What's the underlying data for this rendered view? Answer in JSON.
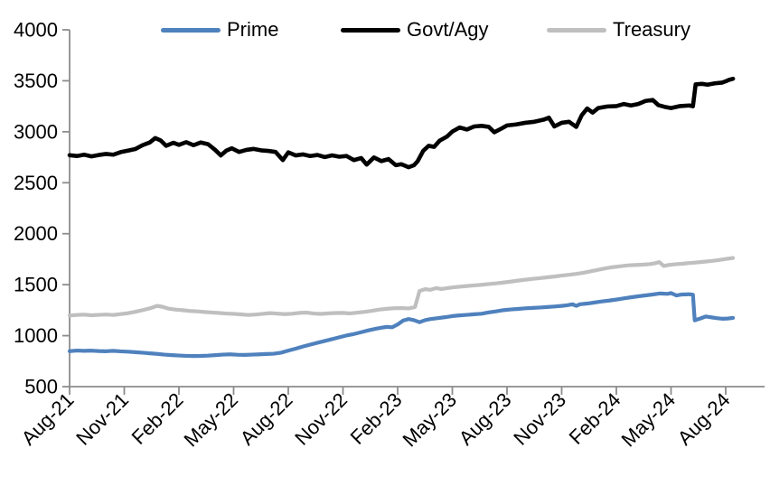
{
  "chart_data": {
    "type": "line",
    "title": "",
    "xlabel": "",
    "ylabel": "",
    "grid": false,
    "legend_position": "top",
    "x_unit": "months since Aug-21 (0 = Aug-21)",
    "x_tick_labels": [
      "Aug-21",
      "Nov-21",
      "Feb-22",
      "May-22",
      "Aug-22",
      "Nov-22",
      "Feb-23",
      "May-23",
      "Aug-23",
      "Nov-23",
      "Feb-24",
      "May-24",
      "Aug-24"
    ],
    "x_tick_positions": [
      0,
      3,
      6,
      9,
      12,
      15,
      18,
      21,
      24,
      27,
      30,
      33,
      36
    ],
    "xlim": [
      0,
      36.4
    ],
    "ylim": [
      500,
      4000
    ],
    "y_ticks": [
      500,
      1000,
      1500,
      2000,
      2500,
      3000,
      3500,
      4000
    ],
    "axis_color": "#8C8C8C",
    "series": [
      {
        "name": "Prime",
        "color": "#4F81BD",
        "points": [
          [
            0,
            848
          ],
          [
            0.4,
            854
          ],
          [
            0.8,
            851
          ],
          [
            1.2,
            853
          ],
          [
            1.6,
            849
          ],
          [
            2,
            847
          ],
          [
            2.4,
            851
          ],
          [
            2.8,
            846
          ],
          [
            3.2,
            843
          ],
          [
            3.6,
            838
          ],
          [
            4,
            833
          ],
          [
            4.4,
            827
          ],
          [
            4.8,
            821
          ],
          [
            5.2,
            814
          ],
          [
            5.6,
            809
          ],
          [
            6,
            805
          ],
          [
            6.4,
            802
          ],
          [
            6.8,
            800
          ],
          [
            7.2,
            801
          ],
          [
            7.6,
            804
          ],
          [
            8,
            809
          ],
          [
            8.4,
            814
          ],
          [
            8.8,
            817
          ],
          [
            9.2,
            813
          ],
          [
            9.6,
            811
          ],
          [
            10,
            814
          ],
          [
            10.4,
            817
          ],
          [
            10.8,
            820
          ],
          [
            11.2,
            823
          ],
          [
            11.6,
            833
          ],
          [
            12,
            853
          ],
          [
            12.4,
            872
          ],
          [
            12.8,
            893
          ],
          [
            13.2,
            912
          ],
          [
            13.6,
            930
          ],
          [
            14,
            948
          ],
          [
            14.4,
            966
          ],
          [
            14.8,
            984
          ],
          [
            15.2,
            1002
          ],
          [
            15.6,
            1016
          ],
          [
            16,
            1034
          ],
          [
            16.4,
            1052
          ],
          [
            16.8,
            1068
          ],
          [
            17.1,
            1078
          ],
          [
            17.4,
            1086
          ],
          [
            17.7,
            1082
          ],
          [
            18,
            1110
          ],
          [
            18.3,
            1148
          ],
          [
            18.6,
            1163
          ],
          [
            18.9,
            1152
          ],
          [
            19.2,
            1132
          ],
          [
            19.5,
            1152
          ],
          [
            19.8,
            1163
          ],
          [
            20.2,
            1172
          ],
          [
            20.6,
            1181
          ],
          [
            21,
            1192
          ],
          [
            21.4,
            1199
          ],
          [
            21.8,
            1204
          ],
          [
            22.2,
            1210
          ],
          [
            22.6,
            1215
          ],
          [
            23,
            1228
          ],
          [
            23.4,
            1238
          ],
          [
            23.8,
            1250
          ],
          [
            24.2,
            1257
          ],
          [
            24.6,
            1262
          ],
          [
            25,
            1268
          ],
          [
            25.4,
            1272
          ],
          [
            25.8,
            1276
          ],
          [
            26.2,
            1281
          ],
          [
            26.6,
            1286
          ],
          [
            27,
            1292
          ],
          [
            27.3,
            1298
          ],
          [
            27.6,
            1308
          ],
          [
            27.8,
            1292
          ],
          [
            28,
            1308
          ],
          [
            28.4,
            1315
          ],
          [
            28.8,
            1325
          ],
          [
            29.2,
            1336
          ],
          [
            29.6,
            1344
          ],
          [
            30,
            1354
          ],
          [
            30.4,
            1366
          ],
          [
            30.8,
            1376
          ],
          [
            31.2,
            1386
          ],
          [
            31.6,
            1395
          ],
          [
            32,
            1404
          ],
          [
            32.4,
            1414
          ],
          [
            32.8,
            1410
          ],
          [
            33,
            1418
          ],
          [
            33.3,
            1394
          ],
          [
            33.6,
            1404
          ],
          [
            34,
            1406
          ],
          [
            34.2,
            1402
          ],
          [
            34.3,
            1150
          ],
          [
            34.6,
            1168
          ],
          [
            34.9,
            1188
          ],
          [
            35.2,
            1180
          ],
          [
            35.5,
            1172
          ],
          [
            35.8,
            1166
          ],
          [
            36.1,
            1168
          ],
          [
            36.4,
            1174
          ]
        ]
      },
      {
        "name": "Govt/Agy",
        "color": "#000000",
        "points": [
          [
            0,
            2770
          ],
          [
            0.4,
            2762
          ],
          [
            0.8,
            2775
          ],
          [
            1.2,
            2758
          ],
          [
            1.6,
            2772
          ],
          [
            2,
            2782
          ],
          [
            2.4,
            2775
          ],
          [
            2.8,
            2800
          ],
          [
            3.2,
            2815
          ],
          [
            3.6,
            2830
          ],
          [
            4,
            2868
          ],
          [
            4.4,
            2895
          ],
          [
            4.7,
            2938
          ],
          [
            5,
            2915
          ],
          [
            5.3,
            2862
          ],
          [
            5.7,
            2892
          ],
          [
            6,
            2872
          ],
          [
            6.4,
            2898
          ],
          [
            6.8,
            2868
          ],
          [
            7.2,
            2895
          ],
          [
            7.6,
            2878
          ],
          [
            8,
            2820
          ],
          [
            8.3,
            2768
          ],
          [
            8.6,
            2815
          ],
          [
            8.9,
            2838
          ],
          [
            9.3,
            2802
          ],
          [
            9.7,
            2822
          ],
          [
            10.1,
            2832
          ],
          [
            10.5,
            2818
          ],
          [
            10.9,
            2812
          ],
          [
            11.3,
            2802
          ],
          [
            11.7,
            2722
          ],
          [
            12,
            2798
          ],
          [
            12.4,
            2768
          ],
          [
            12.8,
            2778
          ],
          [
            13.2,
            2762
          ],
          [
            13.6,
            2772
          ],
          [
            14,
            2752
          ],
          [
            14.4,
            2768
          ],
          [
            14.8,
            2755
          ],
          [
            15.2,
            2762
          ],
          [
            15.6,
            2722
          ],
          [
            16,
            2742
          ],
          [
            16.3,
            2678
          ],
          [
            16.7,
            2748
          ],
          [
            17.1,
            2712
          ],
          [
            17.5,
            2732
          ],
          [
            17.9,
            2672
          ],
          [
            18.2,
            2682
          ],
          [
            18.6,
            2652
          ],
          [
            18.9,
            2672
          ],
          [
            19.1,
            2712
          ],
          [
            19.4,
            2812
          ],
          [
            19.7,
            2862
          ],
          [
            20,
            2852
          ],
          [
            20.3,
            2912
          ],
          [
            20.7,
            2952
          ],
          [
            21,
            3002
          ],
          [
            21.4,
            3042
          ],
          [
            21.8,
            3022
          ],
          [
            22.2,
            3052
          ],
          [
            22.6,
            3058
          ],
          [
            23,
            3048
          ],
          [
            23.3,
            2995
          ],
          [
            23.7,
            3032
          ],
          [
            24,
            3062
          ],
          [
            24.5,
            3072
          ],
          [
            25,
            3088
          ],
          [
            25.5,
            3098
          ],
          [
            26,
            3118
          ],
          [
            26.3,
            3138
          ],
          [
            26.6,
            3052
          ],
          [
            27,
            3088
          ],
          [
            27.4,
            3098
          ],
          [
            27.8,
            3048
          ],
          [
            28.1,
            3162
          ],
          [
            28.4,
            3228
          ],
          [
            28.7,
            3188
          ],
          [
            29,
            3232
          ],
          [
            29.5,
            3248
          ],
          [
            30,
            3252
          ],
          [
            30.4,
            3272
          ],
          [
            30.8,
            3258
          ],
          [
            31.2,
            3272
          ],
          [
            31.6,
            3302
          ],
          [
            32,
            3312
          ],
          [
            32.3,
            3262
          ],
          [
            32.7,
            3242
          ],
          [
            33,
            3232
          ],
          [
            33.5,
            3252
          ],
          [
            34,
            3258
          ],
          [
            34.2,
            3250
          ],
          [
            34.35,
            3465
          ],
          [
            34.7,
            3470
          ],
          [
            35,
            3462
          ],
          [
            35.4,
            3475
          ],
          [
            35.8,
            3482
          ],
          [
            36,
            3495
          ],
          [
            36.2,
            3510
          ],
          [
            36.4,
            3520
          ]
        ]
      },
      {
        "name": "Treasury",
        "color": "#BFBFBF",
        "points": [
          [
            0,
            1198
          ],
          [
            0.4,
            1203
          ],
          [
            0.8,
            1206
          ],
          [
            1.2,
            1200
          ],
          [
            1.6,
            1204
          ],
          [
            2,
            1207
          ],
          [
            2.4,
            1203
          ],
          [
            2.8,
            1212
          ],
          [
            3.2,
            1220
          ],
          [
            3.6,
            1234
          ],
          [
            4,
            1250
          ],
          [
            4.4,
            1268
          ],
          [
            4.8,
            1292
          ],
          [
            5.1,
            1283
          ],
          [
            5.4,
            1266
          ],
          [
            5.8,
            1256
          ],
          [
            6.2,
            1250
          ],
          [
            6.6,
            1242
          ],
          [
            7,
            1238
          ],
          [
            7.4,
            1232
          ],
          [
            7.8,
            1227
          ],
          [
            8.2,
            1222
          ],
          [
            8.6,
            1217
          ],
          [
            9,
            1214
          ],
          [
            9.4,
            1209
          ],
          [
            9.8,
            1203
          ],
          [
            10.2,
            1207
          ],
          [
            10.6,
            1214
          ],
          [
            11,
            1221
          ],
          [
            11.4,
            1216
          ],
          [
            11.8,
            1211
          ],
          [
            12.2,
            1215
          ],
          [
            12.6,
            1223
          ],
          [
            13,
            1226
          ],
          [
            13.4,
            1217
          ],
          [
            13.8,
            1213
          ],
          [
            14.2,
            1219
          ],
          [
            14.6,
            1222
          ],
          [
            15,
            1223
          ],
          [
            15.4,
            1218
          ],
          [
            15.8,
            1226
          ],
          [
            16.2,
            1234
          ],
          [
            16.6,
            1244
          ],
          [
            17,
            1256
          ],
          [
            17.4,
            1263
          ],
          [
            17.8,
            1269
          ],
          [
            18.2,
            1271
          ],
          [
            18.6,
            1267
          ],
          [
            18.95,
            1280
          ],
          [
            19.2,
            1438
          ],
          [
            19.5,
            1456
          ],
          [
            19.8,
            1450
          ],
          [
            20.1,
            1466
          ],
          [
            20.4,
            1458
          ],
          [
            20.7,
            1465
          ],
          [
            21,
            1473
          ],
          [
            21.4,
            1480
          ],
          [
            21.8,
            1487
          ],
          [
            22.2,
            1493
          ],
          [
            22.6,
            1499
          ],
          [
            23,
            1506
          ],
          [
            23.4,
            1513
          ],
          [
            23.8,
            1521
          ],
          [
            24.2,
            1530
          ],
          [
            24.6,
            1540
          ],
          [
            25,
            1549
          ],
          [
            25.4,
            1557
          ],
          [
            25.8,
            1564
          ],
          [
            26.2,
            1572
          ],
          [
            26.6,
            1580
          ],
          [
            27,
            1589
          ],
          [
            27.4,
            1597
          ],
          [
            27.8,
            1606
          ],
          [
            28.2,
            1617
          ],
          [
            28.6,
            1631
          ],
          [
            29,
            1646
          ],
          [
            29.4,
            1660
          ],
          [
            29.8,
            1672
          ],
          [
            30.2,
            1680
          ],
          [
            30.6,
            1689
          ],
          [
            31,
            1693
          ],
          [
            31.4,
            1696
          ],
          [
            31.8,
            1701
          ],
          [
            32.1,
            1709
          ],
          [
            32.35,
            1722
          ],
          [
            32.6,
            1684
          ],
          [
            32.9,
            1694
          ],
          [
            33.2,
            1700
          ],
          [
            33.6,
            1705
          ],
          [
            34,
            1712
          ],
          [
            34.4,
            1718
          ],
          [
            34.8,
            1725
          ],
          [
            35.2,
            1732
          ],
          [
            35.6,
            1741
          ],
          [
            36,
            1752
          ],
          [
            36.4,
            1762
          ]
        ]
      }
    ]
  }
}
